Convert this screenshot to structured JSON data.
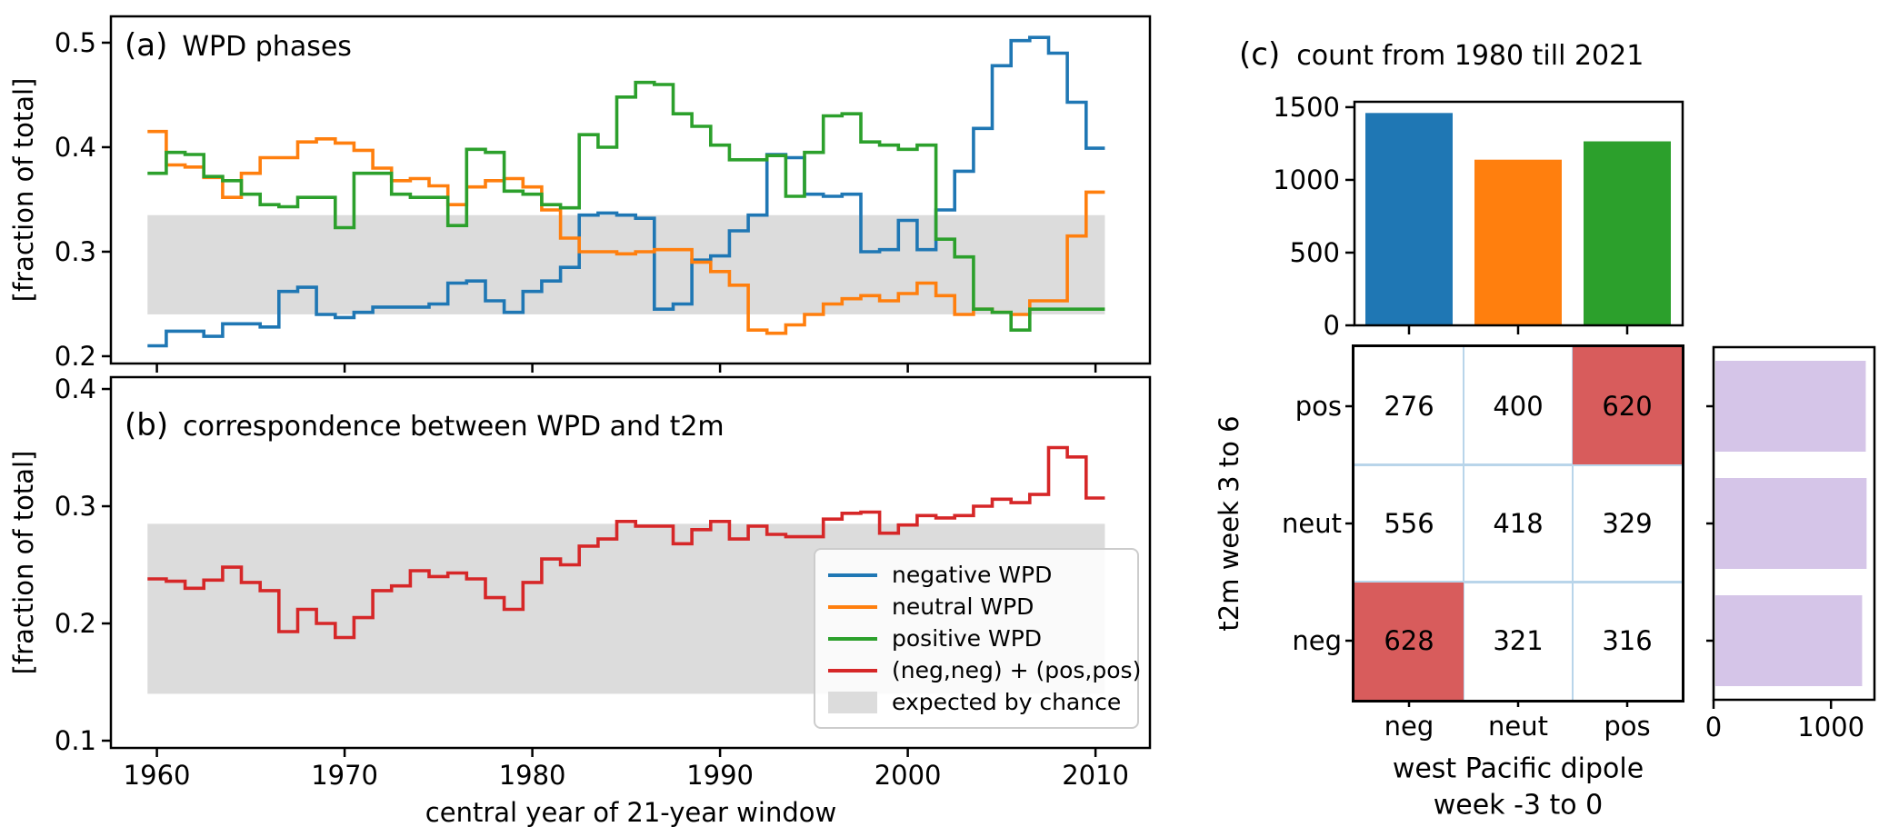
{
  "chart_data": [
    {
      "id": "panel_a",
      "type": "line",
      "panel_label": "(a)",
      "title": "WPD phases",
      "ylabel": "[fraction of total]",
      "x_start": 1960,
      "xticks": [
        1960,
        1970,
        1980,
        1990,
        2000,
        2010
      ],
      "yticks": [
        0.2,
        0.3,
        0.4,
        0.5
      ],
      "ytick_decimals": 1,
      "xlim": [
        1957.55,
        2012.9
      ],
      "ylim": [
        0.193,
        0.5252
      ],
      "band": {
        "label": "expected by chance",
        "ymin": 0.24,
        "ymax": 0.335,
        "color": "#dcdcdc"
      },
      "step": true,
      "series": [
        {
          "name": "negative WPD",
          "color": "#1f77b4",
          "values": [
            0.21,
            0.224,
            0.224,
            0.219,
            0.231,
            0.231,
            0.228,
            0.262,
            0.266,
            0.24,
            0.237,
            0.242,
            0.247,
            0.247,
            0.247,
            0.25,
            0.27,
            0.272,
            0.253,
            0.242,
            0.262,
            0.272,
            0.285,
            0.335,
            0.337,
            0.335,
            0.332,
            0.245,
            0.25,
            0.292,
            0.296,
            0.32,
            0.335,
            0.393,
            0.39,
            0.355,
            0.353,
            0.355,
            0.3,
            0.302,
            0.33,
            0.302,
            0.34,
            0.377,
            0.418,
            0.478,
            0.502,
            0.505,
            0.49,
            0.443,
            0.399
          ]
        },
        {
          "name": "neutral WPD",
          "color": "#ff7f0e",
          "values": [
            0.415,
            0.383,
            0.381,
            0.371,
            0.352,
            0.375,
            0.39,
            0.39,
            0.405,
            0.408,
            0.404,
            0.397,
            0.38,
            0.368,
            0.37,
            0.363,
            0.345,
            0.362,
            0.368,
            0.37,
            0.362,
            0.34,
            0.313,
            0.3,
            0.3,
            0.298,
            0.3,
            0.302,
            0.302,
            0.29,
            0.281,
            0.268,
            0.225,
            0.222,
            0.23,
            0.24,
            0.25,
            0.255,
            0.258,
            0.253,
            0.26,
            0.27,
            0.258,
            0.24,
            0.245,
            0.242,
            0.24,
            0.253,
            0.253,
            0.315,
            0.357
          ]
        },
        {
          "name": "positive WPD",
          "color": "#2ca02c",
          "values": [
            0.375,
            0.395,
            0.393,
            0.372,
            0.368,
            0.355,
            0.345,
            0.343,
            0.352,
            0.352,
            0.323,
            0.375,
            0.375,
            0.355,
            0.352,
            0.352,
            0.325,
            0.398,
            0.395,
            0.358,
            0.355,
            0.345,
            0.342,
            0.412,
            0.4,
            0.448,
            0.462,
            0.46,
            0.432,
            0.42,
            0.402,
            0.388,
            0.388,
            0.392,
            0.353,
            0.395,
            0.43,
            0.432,
            0.405,
            0.402,
            0.398,
            0.402,
            0.312,
            0.295,
            0.245,
            0.242,
            0.225,
            0.245,
            0.245,
            0.245,
            0.245
          ]
        }
      ]
    },
    {
      "id": "panel_b",
      "type": "line",
      "panel_label": "(b)",
      "title": "correspondence between WPD and t2m",
      "ylabel": "[fraction of total]",
      "xlabel": "central year of 21-year window",
      "x_start": 1960,
      "xticks": [
        1960,
        1970,
        1980,
        1990,
        2000,
        2010
      ],
      "yticks": [
        0.1,
        0.2,
        0.3,
        0.4
      ],
      "ytick_decimals": 1,
      "xlim": [
        1957.55,
        2012.9
      ],
      "ylim": [
        0.0938,
        0.4101
      ],
      "band": {
        "label": "expected by chance",
        "ymin": 0.14,
        "ymax": 0.285,
        "color": "#dcdcdc"
      },
      "step": true,
      "series": [
        {
          "name": "(neg,neg) + (pos,pos)",
          "color": "#d62728",
          "values": [
            0.238,
            0.236,
            0.23,
            0.237,
            0.248,
            0.235,
            0.228,
            0.193,
            0.212,
            0.2,
            0.188,
            0.205,
            0.228,
            0.232,
            0.245,
            0.24,
            0.243,
            0.238,
            0.222,
            0.212,
            0.235,
            0.255,
            0.25,
            0.266,
            0.272,
            0.287,
            0.283,
            0.283,
            0.268,
            0.28,
            0.287,
            0.272,
            0.283,
            0.276,
            0.274,
            0.274,
            0.289,
            0.294,
            0.295,
            0.277,
            0.284,
            0.292,
            0.29,
            0.292,
            0.3,
            0.306,
            0.303,
            0.31,
            0.35,
            0.342,
            0.307
          ]
        }
      ],
      "legend": [
        {
          "label": "negative WPD",
          "color": "#1f77b4",
          "kind": "line"
        },
        {
          "label": "neutral WPD",
          "color": "#ff7f0e",
          "kind": "line"
        },
        {
          "label": "positive WPD",
          "color": "#2ca02c",
          "kind": "line"
        },
        {
          "label": "(neg,neg) + (pos,pos)",
          "color": "#d62728",
          "kind": "line"
        },
        {
          "label": "expected by chance",
          "color": "#dcdcdc",
          "kind": "patch"
        }
      ]
    },
    {
      "id": "panel_c_bar",
      "type": "bar",
      "panel_label": "(c)",
      "title": "count from 1980 till 2021",
      "categories": [
        "neg",
        "neut",
        "pos"
      ],
      "values": [
        1460,
        1139,
        1265
      ],
      "colors": [
        "#1f77b4",
        "#ff7f0e",
        "#2ca02c"
      ],
      "yticks": [
        0,
        500,
        1000,
        1500
      ],
      "ylim": [
        0,
        1537
      ]
    },
    {
      "id": "panel_c_matrix",
      "type": "heatmap",
      "rows": [
        "pos",
        "neut",
        "neg"
      ],
      "cols": [
        "neg",
        "neut",
        "pos"
      ],
      "cells": [
        [
          276,
          400,
          620
        ],
        [
          556,
          418,
          329
        ],
        [
          628,
          321,
          316
        ]
      ],
      "highlight": [
        [
          0,
          2
        ],
        [
          2,
          0
        ]
      ],
      "highlight_color": "#d85c5c",
      "grid_color": "#b9d5ea",
      "ylabel": "t2m week 3 to 6",
      "xlabel_line1": "west Pacific dipole",
      "xlabel_line2": "week -3 to 0"
    },
    {
      "id": "panel_c_rowtotals",
      "type": "bar_h",
      "values": [
        1296,
        1303,
        1265
      ],
      "color": "#d5c5e8",
      "xticks": [
        0,
        1000
      ],
      "xlim": [
        0,
        1370
      ]
    }
  ]
}
